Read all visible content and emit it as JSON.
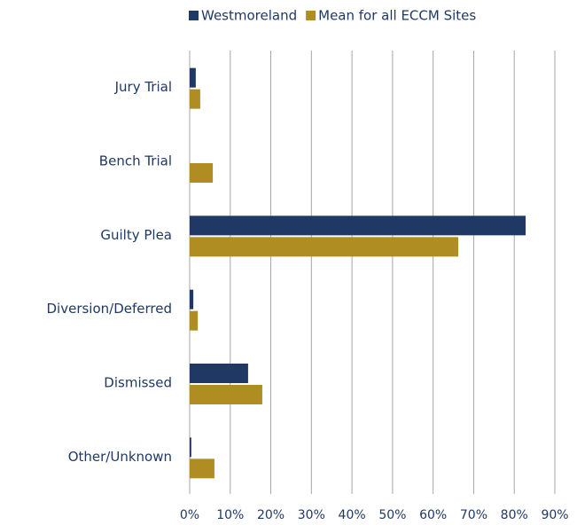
{
  "chart_data": {
    "type": "hbar",
    "categories": [
      "Jury Trial",
      "Bench Trial",
      "Guilty Plea",
      "Diversion/Deferred",
      "Dismissed",
      "Other/Unknown"
    ],
    "series": [
      {
        "name": "Westmoreland",
        "color": "#1f3864",
        "values": [
          1.5,
          0,
          82.8,
          0.9,
          14.4,
          0.4
        ]
      },
      {
        "name": "Mean for all ECCM Sites",
        "color": "#b08d22",
        "values": [
          2.6,
          5.7,
          66.2,
          2.0,
          17.9,
          6.1
        ]
      }
    ],
    "xlim": [
      0,
      90
    ],
    "xticks": [
      {
        "value": 0,
        "label": "0%"
      },
      {
        "value": 10,
        "label": "10%"
      },
      {
        "value": 20,
        "label": "20%"
      },
      {
        "value": 30,
        "label": "30%"
      },
      {
        "value": 40,
        "label": "40%"
      },
      {
        "value": 50,
        "label": "50%"
      },
      {
        "value": 60,
        "label": "60%"
      },
      {
        "value": 70,
        "label": "70%"
      },
      {
        "value": 80,
        "label": "80%"
      },
      {
        "value": 90,
        "label": "90%"
      }
    ],
    "grid": true,
    "legend": "top"
  }
}
